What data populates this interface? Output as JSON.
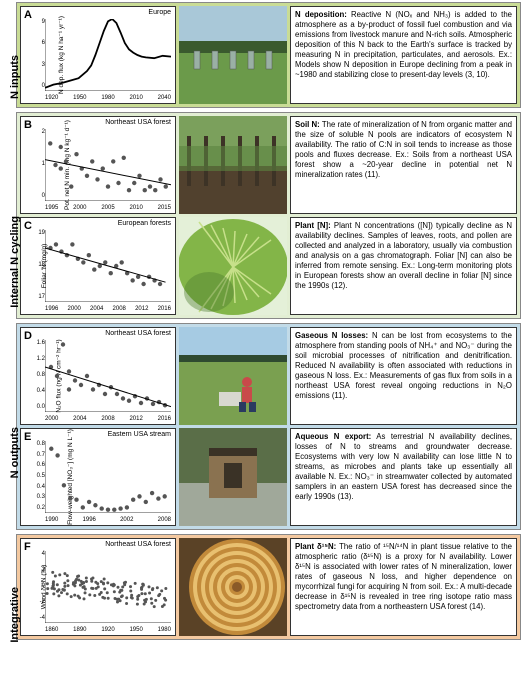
{
  "sections": {
    "inputs": {
      "label": "N inputs",
      "bg": "#c9dc95",
      "panels": {
        "A": {
          "letter": "A",
          "chart_title": "Europe",
          "y_label": "N dep. flux (kg N ha⁻¹ yr⁻¹)",
          "x_ticks": [
            "1920",
            "1950",
            "1980",
            "2010",
            "2040"
          ],
          "y_ticks": [
            "9",
            "6",
            "3",
            "0"
          ],
          "type": "line",
          "line_color": "#000000",
          "line_width": 1.8,
          "points": [
            [
              1900,
              0.4
            ],
            [
              1910,
              0.8
            ],
            [
              1920,
              1.0
            ],
            [
              1930,
              1.3
            ],
            [
              1940,
              1.6
            ],
            [
              1950,
              2.5
            ],
            [
              1955,
              3.2
            ],
            [
              1960,
              4.5
            ],
            [
              1965,
              6.0
            ],
            [
              1970,
              7.5
            ],
            [
              1975,
              8.7
            ],
            [
              1980,
              9.0
            ],
            [
              1985,
              8.5
            ],
            [
              1990,
              7.3
            ],
            [
              1995,
              6.0
            ],
            [
              2000,
              5.2
            ],
            [
              2005,
              4.8
            ],
            [
              2010,
              4.5
            ],
            [
              2015,
              4.3
            ],
            [
              2020,
              4.2
            ],
            [
              2030,
              4.1
            ],
            [
              2040,
              4.4
            ],
            [
              2050,
              4.3
            ]
          ],
          "xlim": [
            1900,
            2050
          ],
          "ylim": [
            0,
            9
          ],
          "heading": "N deposition:",
          "body": " Reactive N (NOₓ and NH₃) is added to the atmosphere as a by-product of fossil fuel combustion and via emissions from livestock manure and N-rich soils. Atmospheric deposition of this N back to the Earth's surface is tracked by measuring N in precipitation, particulates, and aerosols. Ex.: Models show N deposition in Europe declining from a peak in ~1980 and stabilizing close to present-day levels (3, 10)."
        }
      }
    },
    "cycling": {
      "label": "Internal N cycling",
      "bg": "#e2eed3",
      "panels": {
        "B": {
          "letter": "B",
          "chart_title": "Northeast USA forest",
          "y_label": "Pot. net N min. (mg N kg⁻¹ d⁻¹)",
          "x_ticks": [
            "1995",
            "2000",
            "2005",
            "2010",
            "2015"
          ],
          "y_ticks": [
            "2",
            "1",
            "0"
          ],
          "type": "scatter-trend",
          "marker_color": "#555555",
          "marker_size": 2.2,
          "trend_line_color": "#000000",
          "points": [
            [
              1994,
              1.6
            ],
            [
              1995,
              1.0
            ],
            [
              1996,
              1.5
            ],
            [
              1996,
              0.9
            ],
            [
              1997,
              1.1
            ],
            [
              1998,
              0.4
            ],
            [
              1999,
              1.3
            ],
            [
              2000,
              0.9
            ],
            [
              2001,
              0.7
            ],
            [
              2002,
              1.1
            ],
            [
              2003,
              0.6
            ],
            [
              2004,
              0.9
            ],
            [
              2005,
              0.4
            ],
            [
              2006,
              1.1
            ],
            [
              2007,
              0.5
            ],
            [
              2008,
              1.2
            ],
            [
              2009,
              0.3
            ],
            [
              2010,
              0.5
            ],
            [
              2011,
              0.7
            ],
            [
              2012,
              0.3
            ],
            [
              2013,
              0.4
            ],
            [
              2014,
              0.3
            ],
            [
              2015,
              0.6
            ],
            [
              2016,
              0.4
            ]
          ],
          "trend": [
            [
              1993,
              1.15
            ],
            [
              2017,
              0.45
            ]
          ],
          "xlim": [
            1993,
            2017
          ],
          "ylim": [
            0,
            2
          ],
          "heading": "Soil N:",
          "body": " The rate of mineralization of N from organic matter and the size of soluble N pools are indicators of ecosystem N availability. The ratio of C:N in soil tends to increase as those pools and fluxes decrease. Ex.: Soils from a northeast USA forest show a ~20-year decline in potential net N mineralization rates (11)."
        },
        "C": {
          "letter": "C",
          "chart_title": "European forests",
          "y_label": "Foliar 'N (mg/g)",
          "x_ticks": [
            "1996",
            "2000",
            "2004",
            "2008",
            "2012",
            "2016"
          ],
          "y_ticks": [
            "19",
            "18",
            "17"
          ],
          "type": "scatter-trend",
          "marker_color": "#555555",
          "marker_size": 2.2,
          "trend_line_color": "#000000",
          "points": [
            [
              1995,
              18.5
            ],
            [
              1996,
              18.6
            ],
            [
              1997,
              18.4
            ],
            [
              1998,
              18.3
            ],
            [
              1999,
              18.6
            ],
            [
              2000,
              18.2
            ],
            [
              2001,
              18.1
            ],
            [
              2002,
              18.3
            ],
            [
              2003,
              17.9
            ],
            [
              2004,
              18.0
            ],
            [
              2005,
              18.1
            ],
            [
              2006,
              17.8
            ],
            [
              2007,
              18.0
            ],
            [
              2008,
              18.1
            ],
            [
              2009,
              17.8
            ],
            [
              2010,
              17.6
            ],
            [
              2011,
              17.7
            ],
            [
              2012,
              17.5
            ],
            [
              2013,
              17.7
            ],
            [
              2014,
              17.6
            ],
            [
              2015,
              17.5
            ]
          ],
          "trend": [
            [
              1994,
              18.5
            ],
            [
              2016,
              17.55
            ]
          ],
          "xlim": [
            1994,
            2017
          ],
          "ylim": [
            17,
            19
          ],
          "heading": "Plant [N]:",
          "body": " Plant N concentrations ([N]) typically decline as N availability declines. Samples of leaves, roots, and pollen are collected and analyzed in a laboratory, usually via combustion and analysis on a gas chromatograph. Foliar [N] can also be inferred from remote sensing. Ex.: Long-term monitoring plots in European forests show an overall decline in foliar [N] since the 1990s (12)."
        }
      }
    },
    "outputs": {
      "label": "N outputs",
      "bg": "#c2dbe8",
      "panels": {
        "D": {
          "letter": "D",
          "chart_title": "Northeast USA forest",
          "y_label": "N₂O flux (ng N cm⁻² hr⁻¹)",
          "x_ticks": [
            "2000",
            "2004",
            "2008",
            "2012",
            "2016"
          ],
          "y_ticks": [
            "1.6",
            "1.2",
            "0.8",
            "0.4",
            "0.0"
          ],
          "type": "scatter-trend",
          "marker_color": "#555555",
          "marker_size": 2.2,
          "trend_line_color": "#000000",
          "points": [
            [
              1998,
              1.0
            ],
            [
              1999,
              0.8
            ],
            [
              2000,
              1.5
            ],
            [
              2001,
              0.9
            ],
            [
              2001,
              0.5
            ],
            [
              2002,
              0.7
            ],
            [
              2003,
              0.6
            ],
            [
              2004,
              0.8
            ],
            [
              2005,
              0.5
            ],
            [
              2006,
              0.6
            ],
            [
              2007,
              0.4
            ],
            [
              2008,
              0.55
            ],
            [
              2009,
              0.4
            ],
            [
              2010,
              0.3
            ],
            [
              2011,
              0.25
            ],
            [
              2012,
              0.35
            ],
            [
              2013,
              0.2
            ],
            [
              2014,
              0.3
            ],
            [
              2015,
              0.18
            ],
            [
              2016,
              0.22
            ],
            [
              2017,
              0.15
            ]
          ],
          "trend": [
            [
              1997,
              1.0
            ],
            [
              2018,
              0.12
            ]
          ],
          "xlim": [
            1997,
            2018
          ],
          "ylim": [
            0,
            1.6
          ],
          "heading": "Gaseous N losses:",
          "body": " N can be lost from ecosystems to the atmosphere from standing pools of NH₄⁺ and NO₃⁻ during the soil microbial processes of nitrification and denitrification. Reduced N availability is often associated with reductions in gaseous N loss. Ex.: Measurements of gas flux from soils in a northeast USA forest reveal ongoing reductions in N₂O emissions (11)."
        },
        "E": {
          "letter": "E",
          "chart_title": "Eastern USA stream",
          "y_label": "Flow-weighted [NO₃⁻] (mg N L⁻¹)",
          "x_ticks": [
            "1990",
            "1996",
            "2002",
            "2008"
          ],
          "y_ticks": [
            "0.8",
            "0.7",
            "0.6",
            "0.5",
            "0.4",
            "0.3",
            "0.2"
          ],
          "type": "scatter",
          "marker_color": "#555555",
          "marker_size": 2.2,
          "points": [
            [
              1990,
              0.78
            ],
            [
              1991,
              0.72
            ],
            [
              1992,
              0.45
            ],
            [
              1993,
              0.33
            ],
            [
              1994,
              0.32
            ],
            [
              1995,
              0.25
            ],
            [
              1996,
              0.3
            ],
            [
              1997,
              0.27
            ],
            [
              1998,
              0.24
            ],
            [
              1999,
              0.23
            ],
            [
              2000,
              0.23
            ],
            [
              2001,
              0.24
            ],
            [
              2002,
              0.25
            ],
            [
              2003,
              0.32
            ],
            [
              2004,
              0.35
            ],
            [
              2005,
              0.3
            ],
            [
              2006,
              0.38
            ],
            [
              2007,
              0.33
            ],
            [
              2008,
              0.35
            ]
          ],
          "xlim": [
            1989,
            2009
          ],
          "ylim": [
            0.2,
            0.85
          ],
          "heading": "Aqueous N export:",
          "body": " As terrestrial N availability declines, losses of N to streams and groundwater decrease. Ecosystems with very low N availability can lose little N to streams, as microbes and plants take up essentially all available N. Ex.: NO₃⁻ in streamwater collected by automated samplers in an eastern USA forest has decreased since the early 1990s (13)."
        }
      }
    },
    "integrative": {
      "label": "Integrative",
      "bg": "#f4c9a0",
      "panels": {
        "F": {
          "letter": "F",
          "chart_title": "Northeast USA forest",
          "y_label": "Wood δ¹⁵N (‰)",
          "x_ticks": [
            "1860",
            "1890",
            "1920",
            "1950",
            "1980"
          ],
          "y_ticks": [
            "4",
            "2",
            "0",
            "-2",
            "-4"
          ],
          "type": "scatter",
          "marker_color": "#555555",
          "marker_size": 1.5,
          "points": [],
          "cloud": {
            "n": 140,
            "xrange": [
              1850,
              1990
            ],
            "early_mean": 0.5,
            "late_mean": -1.2,
            "sd": 1.3
          },
          "xlim": [
            1850,
            1995
          ],
          "ylim": [
            -4,
            4
          ],
          "heading": "Plant δ¹⁵N:",
          "body": " The ratio of ¹⁵N/¹⁴N in plant tissue relative to the atmospheric ratio (δ¹⁵N) is a proxy for N availability. Lower δ¹⁵N is associated with lower rates of N mineralization, lower rates of gaseous N loss, and higher dependence on mycorrhizal fungi for acquiring N from soil. Ex.: A multi-decade decrease in δ¹⁵N is revealed in tree ring isotope ratio mass spectrometry data from a northeastern USA forest (14)."
        }
      }
    }
  },
  "photo_palettes": {
    "A": {
      "sky": "#a9c8d8",
      "grass": "#6b9a4a",
      "dark": "#3a5a2e",
      "objects": "#9ab0a5"
    },
    "B": {
      "distant": "#7ba05c",
      "mid": "#5c8440",
      "soil": "#51412e",
      "trunk": "#3d3326"
    },
    "C": {
      "leaf": "#83b548",
      "vein": "#c7e08a",
      "shadow": "#4a7a2e",
      "sky": "#e4f0d8"
    },
    "D": {
      "sky": "#a6cbe3",
      "grass": "#7aa050",
      "person": "#c94a4a",
      "box": "#d8d8d0",
      "trees": "#2f4a30"
    },
    "E": {
      "wood": "#8a7250",
      "dark": "#3a3226",
      "water": "#a0a89a",
      "green": "#5a6e48"
    },
    "F": {
      "ring_light": "#e8c070",
      "ring_dark": "#c28a3a",
      "center": "#8a5a28",
      "bark": "#5a4226"
    }
  }
}
